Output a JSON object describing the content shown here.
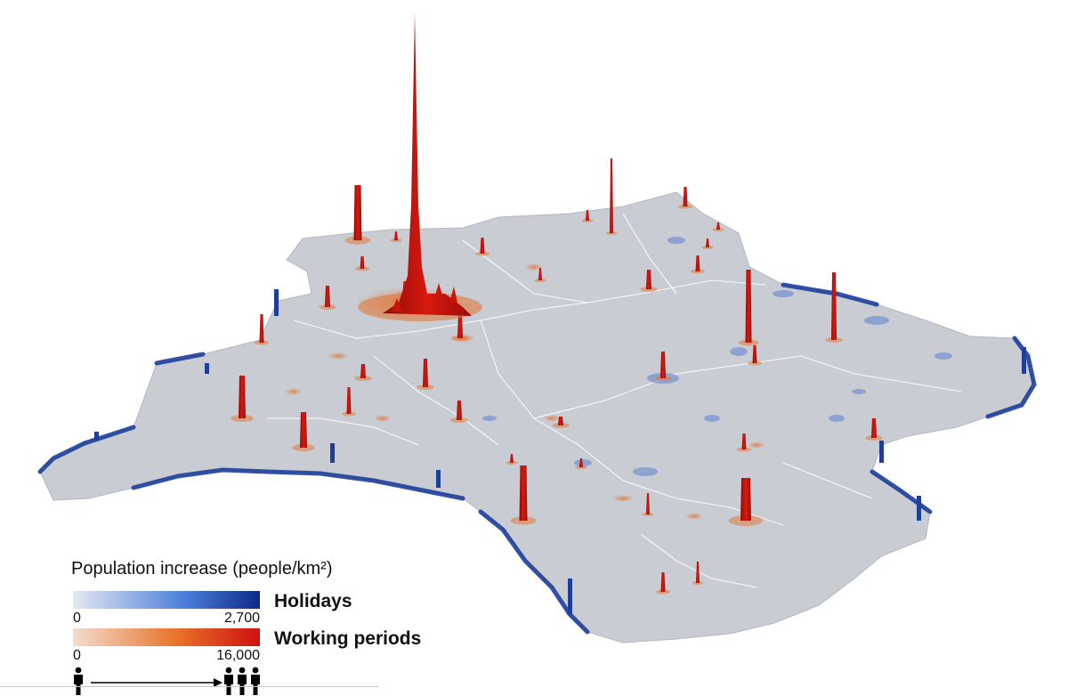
{
  "legend": {
    "title": "Population increase (people/km²)",
    "holidays": {
      "label": "Holidays",
      "min": "0",
      "max": "2,700",
      "color_low": "#e4e8f2",
      "color_high": "#0d2a8a"
    },
    "working": {
      "label": "Working periods",
      "min": "0",
      "max": "16,000",
      "color_low": "#f3ddd0",
      "color_high": "#d01010"
    }
  },
  "colors": {
    "land": "#c9ccd3",
    "border": "#ffffff",
    "coast_blue": "#1d3f9a",
    "peak_red": "#c8160f",
    "peak_orange": "#e07a3c"
  },
  "icons": {
    "single": "person-icon",
    "group": "crowd-icon",
    "arrow": "arrow-right-icon"
  }
}
